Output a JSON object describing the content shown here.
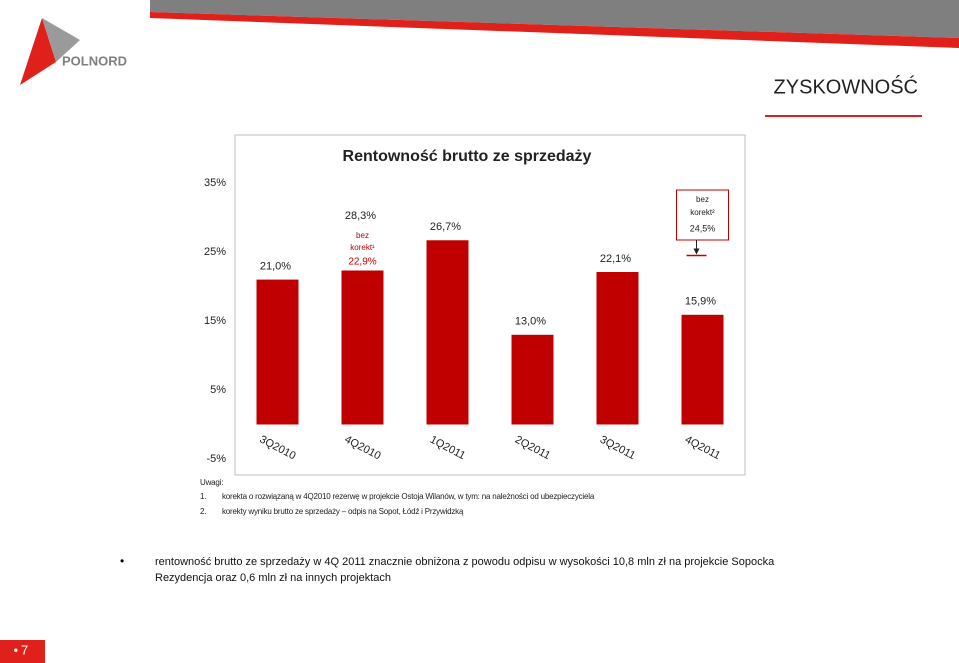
{
  "header": {
    "logo": "POLNORD",
    "section": "ZYSKOWNOŚĆ"
  },
  "chart_data": {
    "type": "bar",
    "title": "Rentowność brutto ze sprzedaży",
    "categories": [
      "3Q2010",
      "4Q2010",
      "1Q2011",
      "2Q2011",
      "3Q2011",
      "4Q2011"
    ],
    "values": [
      21.0,
      28.3,
      26.7,
      13.0,
      22.1,
      15.9
    ],
    "value_labels": [
      "21,0%",
      "28,3%",
      "26,7%",
      "13,0%",
      "22,1%",
      "15,9%"
    ],
    "color": "#c00000",
    "ylim": [
      -5,
      35
    ],
    "yticks": [
      {
        "value": 35,
        "label": "35%"
      },
      {
        "value": 25,
        "label": "25%"
      },
      {
        "value": 15,
        "label": "15%"
      },
      {
        "value": 5,
        "label": "5%"
      },
      {
        "value": -5,
        "label": "-5%"
      }
    ],
    "grid": false,
    "annotations": [
      {
        "lines": [
          "bez",
          "korekt¹"
        ],
        "value": 22.9,
        "label": "22,9%"
      },
      {
        "lines": [
          "bez",
          "korekt²"
        ],
        "value": 24.5,
        "label": "24,5%"
      }
    ]
  },
  "notes": {
    "title": "Uwagi:",
    "items": [
      {
        "number": "1.",
        "text": "korekta o rozwiązaną w 4Q2010 rezerwę w projekcie Ostoja Wilanów, w tym: na należności od ubezpieczyciela"
      },
      {
        "number": "2.",
        "text": "korekty wyniku brutto ze sprzedaży – odpis na Sopot, Łódź i Przywidzką"
      }
    ]
  },
  "bullets": [
    "rentowność brutto ze sprzedaży w 4Q 2011 znacznie obniżona z powodu odpisu w wysokości 10,8 mln zł na projekcie Sopocka Rezydencja oraz 0,6 mln zł na innych projektach"
  ],
  "footer": {
    "page": "7"
  }
}
